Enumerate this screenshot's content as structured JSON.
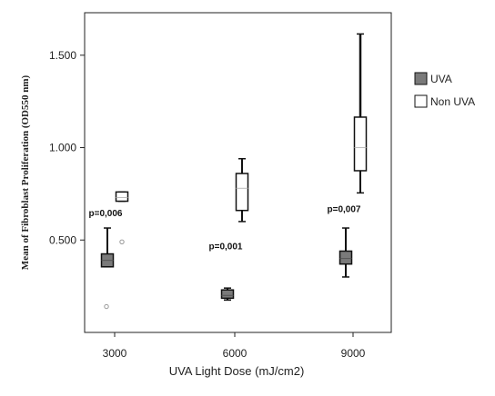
{
  "chart_data": {
    "type": "box",
    "title": "",
    "xlabel": "UVA Light Dose (mJ/cm2)",
    "ylabel": "Mean of Fibroblast Proliferation (OD550 nm)",
    "ylim": [
      0.0,
      1.73
    ],
    "yticks": [
      {
        "value": 0.5,
        "label": "0.500"
      },
      {
        "value": 1.0,
        "label": "1.000"
      },
      {
        "value": 1.5,
        "label": "1.500"
      }
    ],
    "categories": [
      "3000",
      "6000",
      "9000"
    ],
    "legend_position": "right",
    "series": [
      {
        "name": "UVA",
        "color": "#7a7a7a",
        "boxes": [
          {
            "category": "3000",
            "whisker_low": 0.355,
            "q1": 0.355,
            "median": 0.39,
            "q3": 0.425,
            "whisker_high": 0.565
          },
          {
            "category": "6000",
            "whisker_low": 0.175,
            "q1": 0.185,
            "median": 0.2,
            "q3": 0.23,
            "whisker_high": 0.24
          },
          {
            "category": "9000",
            "whisker_low": 0.3,
            "q1": 0.37,
            "median": 0.4,
            "q3": 0.44,
            "whisker_high": 0.565
          }
        ],
        "outliers": [
          {
            "category": "3000",
            "value": 0.14
          }
        ]
      },
      {
        "name": "Non UVA",
        "color": "#ffffff",
        "boxes": [
          {
            "category": "3000",
            "whisker_low": 0.71,
            "q1": 0.71,
            "median": 0.73,
            "q3": 0.76,
            "whisker_high": 0.76
          },
          {
            "category": "6000",
            "whisker_low": 0.6,
            "q1": 0.66,
            "median": 0.78,
            "q3": 0.86,
            "whisker_high": 0.94
          },
          {
            "category": "9000",
            "whisker_low": 0.755,
            "q1": 0.875,
            "median": 1.0,
            "q3": 1.165,
            "whisker_high": 1.615
          }
        ],
        "outliers": [
          {
            "category": "3000",
            "value": 0.49
          }
        ]
      }
    ],
    "annotations": [
      {
        "category": "3000",
        "text": "p=0,006",
        "value": 0.63
      },
      {
        "category": "6000",
        "text": "p=0,001",
        "value": 0.45
      },
      {
        "category": "9000",
        "text": "p=0,007",
        "value": 0.65
      }
    ]
  }
}
